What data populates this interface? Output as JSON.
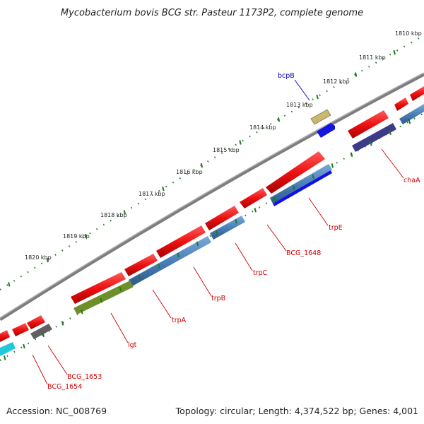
{
  "title": "Mycobacterium bovis BCG str. Pasteur 1173P2, complete genome",
  "footer": {
    "accession": "Accession: NC_008769",
    "summary": "Topology: circular; Length: 4,374,522 bp; Genes: 4,001"
  },
  "ruler_ticks": [
    {
      "label": "1810 kbp"
    },
    {
      "label": "1811 kbp"
    },
    {
      "label": "1812 kbp"
    },
    {
      "label": "1813 kbp"
    },
    {
      "label": "1814 kbp"
    },
    {
      "label": "1815 kbp"
    },
    {
      "label": "1816 kbp"
    },
    {
      "label": "1817 kbp"
    },
    {
      "label": "1818 kbp"
    },
    {
      "label": "1819 kbp"
    },
    {
      "label": "1820 kbp"
    }
  ],
  "gene_labels": [
    {
      "name": "bcpB",
      "color": "#0000cc"
    },
    {
      "name": "chaA",
      "color": "#cc0000"
    },
    {
      "name": "trpE",
      "color": "#cc0000"
    },
    {
      "name": "BCG_1648",
      "color": "#cc0000"
    },
    {
      "name": "trpC",
      "color": "#cc0000"
    },
    {
      "name": "trpB",
      "color": "#cc0000"
    },
    {
      "name": "trpA",
      "color": "#cc0000"
    },
    {
      "name": "lgt",
      "color": "#cc0000"
    },
    {
      "name": "BCG_1653",
      "color": "#cc0000"
    },
    {
      "name": "BCG_1654",
      "color": "#cc0000"
    }
  ],
  "colors": {
    "backbone": "#8a8a8a",
    "ruler_dots": "#1f7a1f",
    "cds": "#ee1111",
    "gene": "#4a80b8",
    "tick_marks": "#1f7a1f"
  }
}
